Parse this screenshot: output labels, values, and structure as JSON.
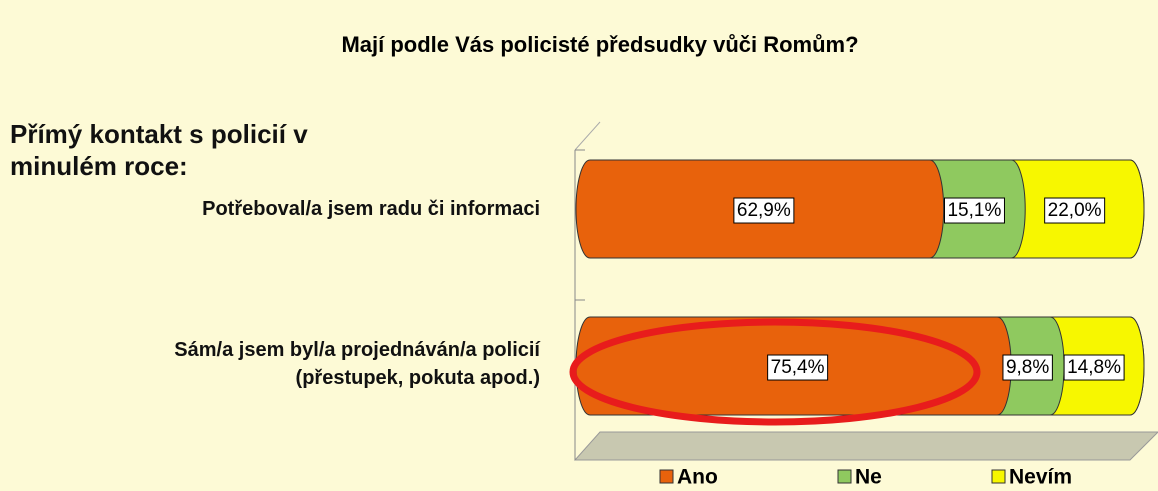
{
  "chart_data": {
    "type": "bar",
    "orientation": "horizontal",
    "stacked": true,
    "title": "Mají podle Vás policisté předsudky vůči Romům?",
    "subtitle": "Přímý kontakt s policií v minulém roce:",
    "categories": [
      "Potřeboval/a jsem radu či informaci",
      "Sám/a jsem byl/a projednáván/a policií\n(přestupek, pokuta apod.)"
    ],
    "series": [
      {
        "name": "Ano",
        "color": "#e8620c",
        "values": [
          62.9,
          75.4
        ],
        "value_labels": [
          "62,9%",
          "75,4%"
        ]
      },
      {
        "name": "Ne",
        "color": "#8fc95f",
        "values": [
          15.1,
          9.8
        ],
        "value_labels": [
          "15,1%",
          "9,8%"
        ]
      },
      {
        "name": "Nevím",
        "color": "#f7f700",
        "values": [
          22.0,
          14.8
        ],
        "value_labels": [
          "22,0%",
          "14,8%"
        ]
      }
    ],
    "xlim": [
      0,
      100
    ],
    "legend": "bottom"
  }
}
